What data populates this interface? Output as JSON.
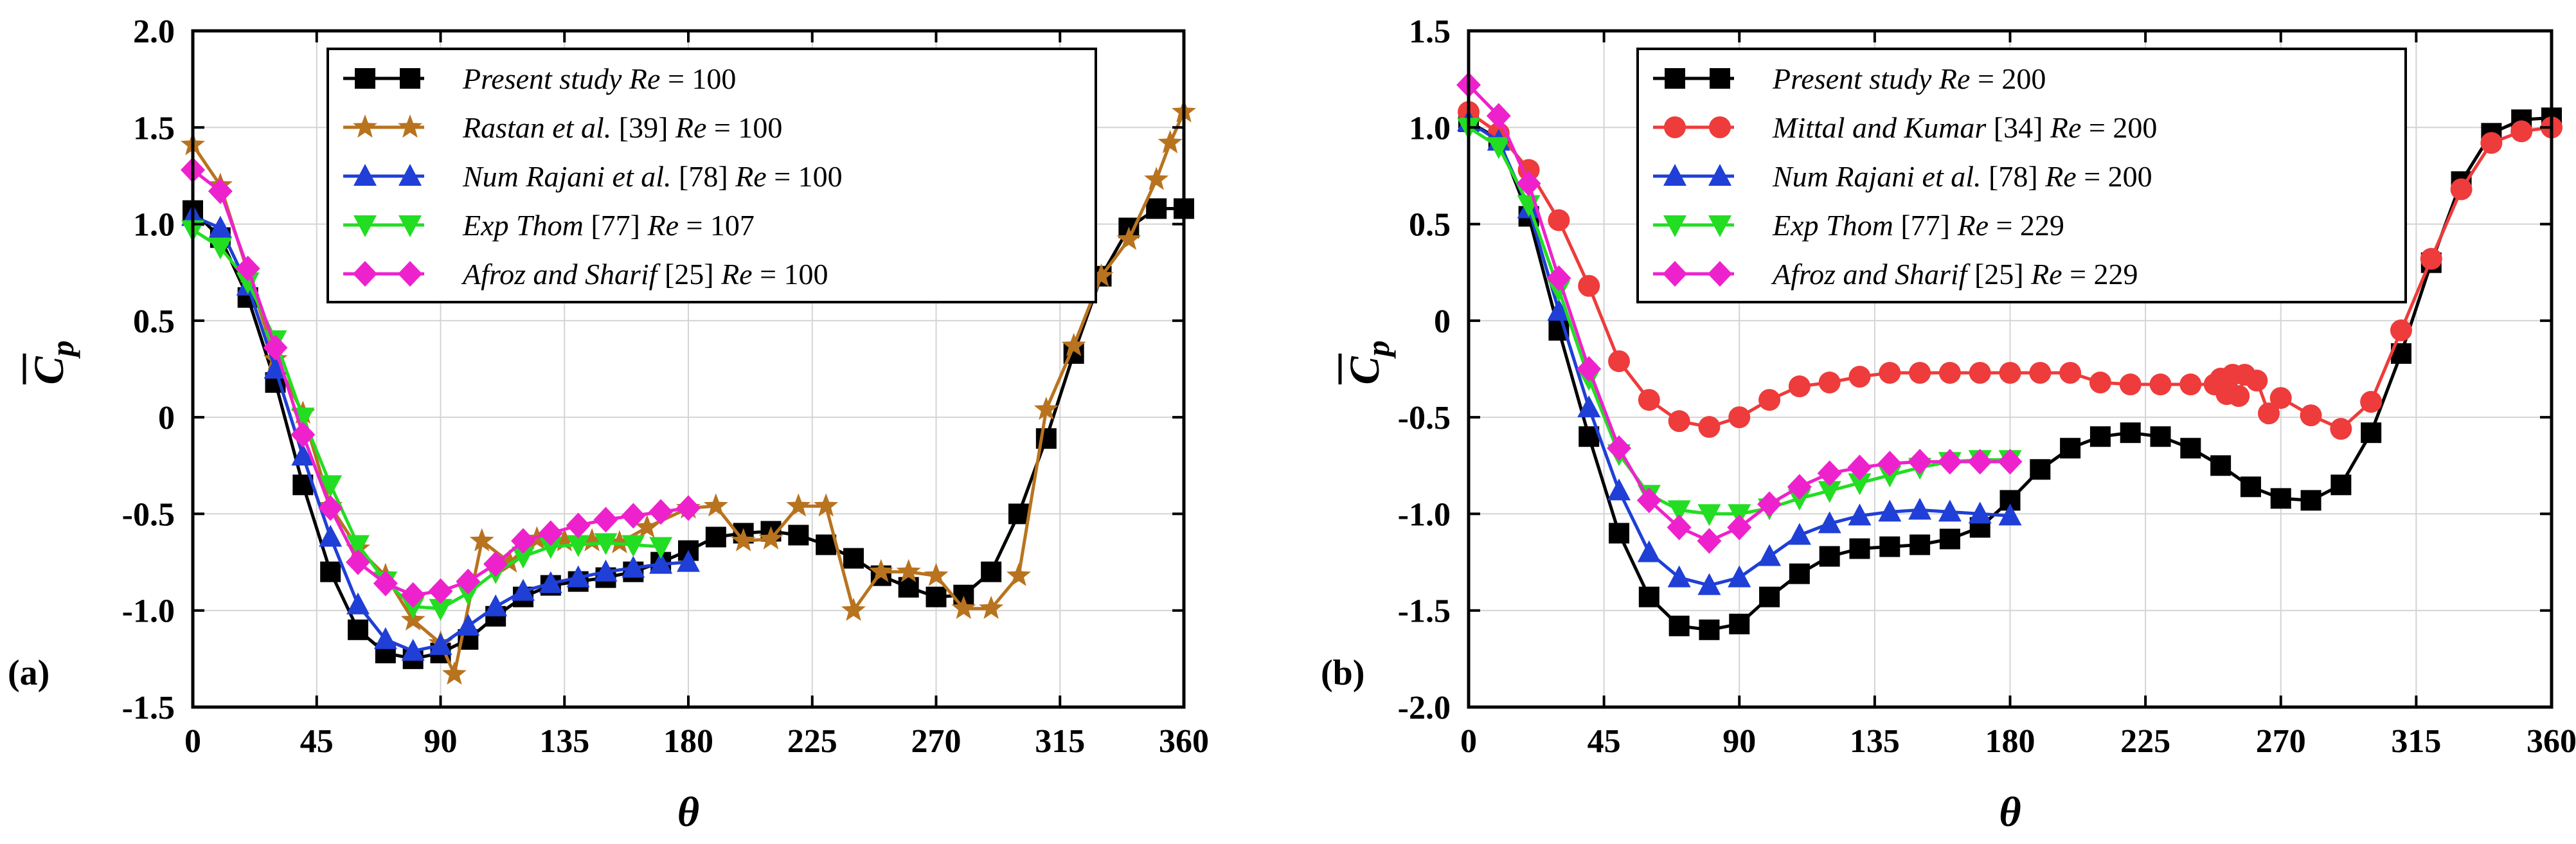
{
  "colors": {
    "black": "#000000",
    "brown": "#b8731f",
    "blue": "#1f3fd6",
    "green": "#22dd22",
    "magenta": "#ee22cc",
    "red": "#ee3b3b"
  },
  "chart_data": [
    {
      "type": "line",
      "panel_label": "(a)",
      "xlabel": "θ",
      "ylabel": "C p",
      "xlim": [
        0,
        360
      ],
      "ylim": [
        -1.5,
        2.0
      ],
      "xticks": [
        0,
        45,
        90,
        135,
        180,
        225,
        270,
        315,
        360
      ],
      "xtick_labels": [
        "0",
        "45",
        "90",
        "135",
        "180",
        "225",
        "270",
        "315",
        "360"
      ],
      "yticks": [
        -1.5,
        -1.0,
        -0.5,
        0,
        0.5,
        1.0,
        1.5,
        2.0
      ],
      "ytick_labels": [
        "-1.5",
        "-1.0",
        "-0.5",
        "0",
        "0.5",
        "1.0",
        "1.5",
        "2.0"
      ],
      "series": [
        {
          "name": "Present study",
          "re_label": "Re",
          "re_value": "= 100",
          "ref": "",
          "color": "#000000",
          "marker": "square",
          "x": [
            0,
            10,
            20,
            30,
            40,
            50,
            60,
            70,
            80,
            90,
            100,
            110,
            120,
            130,
            140,
            150,
            160,
            170,
            180,
            190,
            200,
            210,
            220,
            230,
            240,
            250,
            260,
            270,
            280,
            290,
            300,
            310,
            320,
            330,
            340,
            350,
            360
          ],
          "y": [
            1.07,
            0.93,
            0.62,
            0.18,
            -0.35,
            -0.8,
            -1.1,
            -1.22,
            -1.25,
            -1.22,
            -1.15,
            -1.03,
            -0.93,
            -0.87,
            -0.85,
            -0.83,
            -0.8,
            -0.75,
            -0.69,
            -0.62,
            -0.6,
            -0.59,
            -0.61,
            -0.66,
            -0.73,
            -0.82,
            -0.88,
            -0.93,
            -0.92,
            -0.8,
            -0.5,
            -0.11,
            0.33,
            0.73,
            0.98,
            1.08,
            1.08
          ]
        },
        {
          "name": "Rastan et al.",
          "re_label": "Re",
          "re_value": "= 100",
          "ref": "[39]",
          "color": "#b8731f",
          "marker": "star",
          "x": [
            0,
            10,
            20,
            30,
            40,
            50,
            60,
            70,
            80,
            90,
            95,
            105,
            115,
            125,
            135,
            145,
            155,
            165,
            180,
            190,
            200,
            210,
            220,
            230,
            240,
            250,
            260,
            270,
            280,
            290,
            300,
            310,
            320,
            330,
            340,
            350,
            355,
            360
          ],
          "y": [
            1.41,
            1.2,
            0.75,
            0.3,
            0.02,
            -0.46,
            -0.68,
            -0.82,
            -1.05,
            -1.17,
            -1.33,
            -0.64,
            -0.75,
            -0.63,
            -0.64,
            -0.64,
            -0.65,
            -0.57,
            -0.47,
            -0.46,
            -0.64,
            -0.63,
            -0.46,
            -0.46,
            -1.0,
            -0.8,
            -0.8,
            -0.82,
            -0.99,
            -0.99,
            -0.82,
            0.04,
            0.37,
            0.73,
            0.92,
            1.23,
            1.42,
            1.58
          ]
        },
        {
          "name": "Num Rajani et al.",
          "re_label": "Re",
          "re_value": "= 100",
          "ref": "[78]",
          "color": "#1f3fd6",
          "marker": "triangle-up",
          "x": [
            0,
            10,
            20,
            30,
            40,
            50,
            60,
            70,
            80,
            90,
            100,
            110,
            120,
            130,
            140,
            150,
            160,
            170,
            180
          ],
          "y": [
            1.04,
            0.98,
            0.68,
            0.25,
            -0.2,
            -0.62,
            -0.97,
            -1.15,
            -1.21,
            -1.18,
            -1.08,
            -0.98,
            -0.9,
            -0.86,
            -0.83,
            -0.8,
            -0.78,
            -0.76,
            -0.75
          ]
        },
        {
          "name": "Exp Thom",
          "re_label": "Re",
          "re_value": "= 107",
          "ref": "[77]",
          "color": "#22dd22",
          "marker": "triangle-down",
          "x": [
            0,
            10,
            20,
            30,
            40,
            50,
            60,
            70,
            80,
            90,
            100,
            110,
            120,
            130,
            140,
            150,
            160,
            170
          ],
          "y": [
            0.97,
            0.88,
            0.7,
            0.4,
            0.0,
            -0.35,
            -0.66,
            -0.85,
            -0.98,
            -0.99,
            -0.91,
            -0.8,
            -0.72,
            -0.67,
            -0.66,
            -0.65,
            -0.66,
            -0.67
          ]
        },
        {
          "name": "Afroz and Sharif",
          "re_label": "Re",
          "re_value": "= 100",
          "ref": "[25]",
          "color": "#ee22cc",
          "marker": "diamond",
          "x": [
            0,
            10,
            20,
            30,
            40,
            50,
            60,
            70,
            80,
            90,
            100,
            110,
            120,
            130,
            140,
            150,
            160,
            170,
            180
          ],
          "y": [
            1.28,
            1.17,
            0.77,
            0.36,
            -0.09,
            -0.47,
            -0.75,
            -0.86,
            -0.92,
            -0.9,
            -0.85,
            -0.76,
            -0.64,
            -0.6,
            -0.56,
            -0.53,
            -0.51,
            -0.49,
            -0.47
          ]
        }
      ]
    },
    {
      "type": "line",
      "panel_label": "(b)",
      "xlabel": "θ",
      "ylabel": "C p",
      "xlim": [
        0,
        360
      ],
      "ylim": [
        -2.0,
        1.5
      ],
      "xticks": [
        0,
        45,
        90,
        135,
        180,
        225,
        270,
        315,
        360
      ],
      "xtick_labels": [
        "0",
        "45",
        "90",
        "135",
        "180",
        "225",
        "270",
        "315",
        "360"
      ],
      "yticks": [
        -2.0,
        -1.5,
        -1.0,
        -0.5,
        0,
        0.5,
        1.0,
        1.5
      ],
      "ytick_labels": [
        "-2.0",
        "-1.5",
        "-1.0",
        "-0.5",
        "0",
        "0.5",
        "1.0",
        "1.5"
      ],
      "series": [
        {
          "name": "Present study",
          "re_label": "Re",
          "re_value": "= 200",
          "ref": "",
          "color": "#000000",
          "marker": "square",
          "x": [
            0,
            10,
            20,
            30,
            40,
            50,
            60,
            70,
            80,
            90,
            100,
            110,
            120,
            130,
            140,
            150,
            160,
            170,
            180,
            190,
            200,
            210,
            220,
            230,
            240,
            250,
            260,
            270,
            280,
            290,
            300,
            310,
            320,
            330,
            340,
            350,
            360
          ],
          "y": [
            1.03,
            0.94,
            0.54,
            -0.05,
            -0.6,
            -1.1,
            -1.43,
            -1.58,
            -1.6,
            -1.57,
            -1.43,
            -1.31,
            -1.22,
            -1.18,
            -1.17,
            -1.16,
            -1.13,
            -1.07,
            -0.93,
            -0.77,
            -0.66,
            -0.6,
            -0.58,
            -0.6,
            -0.66,
            -0.75,
            -0.86,
            -0.92,
            -0.93,
            -0.85,
            -0.58,
            -0.17,
            0.3,
            0.72,
            0.97,
            1.04,
            1.05
          ]
        },
        {
          "name": "Mittal and Kumar",
          "re_label": "Re",
          "re_value": "= 200",
          "ref": "[34]",
          "color": "#ee3b3b",
          "marker": "circle",
          "x": [
            0,
            10,
            20,
            30,
            40,
            50,
            60,
            70,
            80,
            90,
            100,
            110,
            120,
            130,
            140,
            150,
            160,
            170,
            180,
            190,
            200,
            210,
            220,
            230,
            240,
            248,
            250,
            252,
            254,
            256,
            258,
            262,
            266,
            270,
            280,
            290,
            300,
            310,
            320,
            330,
            340,
            350,
            360
          ],
          "y": [
            1.08,
            0.97,
            0.78,
            0.52,
            0.18,
            -0.21,
            -0.41,
            -0.52,
            -0.55,
            -0.5,
            -0.41,
            -0.34,
            -0.32,
            -0.29,
            -0.27,
            -0.27,
            -0.27,
            -0.27,
            -0.27,
            -0.27,
            -0.27,
            -0.32,
            -0.33,
            -0.33,
            -0.33,
            -0.33,
            -0.3,
            -0.38,
            -0.28,
            -0.39,
            -0.28,
            -0.31,
            -0.48,
            -0.4,
            -0.49,
            -0.56,
            -0.42,
            -0.05,
            0.32,
            0.68,
            0.92,
            0.98,
            1.0
          ]
        },
        {
          "name": "Num Rajani et al.",
          "re_label": "Re",
          "re_value": "= 200",
          "ref": "[78]",
          "color": "#1f3fd6",
          "marker": "triangle-up",
          "x": [
            0,
            10,
            20,
            30,
            40,
            50,
            60,
            70,
            80,
            90,
            100,
            110,
            120,
            130,
            140,
            150,
            160,
            170,
            180
          ],
          "y": [
            1.03,
            0.93,
            0.58,
            0.05,
            -0.45,
            -0.88,
            -1.2,
            -1.33,
            -1.37,
            -1.33,
            -1.22,
            -1.11,
            -1.05,
            -1.01,
            -0.99,
            -0.98,
            -0.99,
            -1.0,
            -1.01
          ]
        },
        {
          "name": "Exp Thom",
          "re_label": "Re",
          "re_value": "= 229",
          "ref": "[77]",
          "color": "#22dd22",
          "marker": "triangle-down",
          "x": [
            0,
            10,
            20,
            30,
            40,
            50,
            60,
            70,
            80,
            90,
            100,
            110,
            120,
            130,
            140,
            150,
            160,
            170,
            180
          ],
          "y": [
            1.0,
            0.9,
            0.6,
            0.16,
            -0.3,
            -0.69,
            -0.9,
            -0.98,
            -1.0,
            -1.0,
            -0.97,
            -0.92,
            -0.88,
            -0.84,
            -0.8,
            -0.76,
            -0.73,
            -0.72,
            -0.72
          ]
        },
        {
          "name": "Afroz and Sharif",
          "re_label": "Re",
          "re_value": "= 229",
          "ref": "[25]",
          "color": "#ee22cc",
          "marker": "diamond",
          "x": [
            0,
            10,
            20,
            30,
            40,
            50,
            60,
            70,
            80,
            90,
            100,
            110,
            120,
            130,
            140,
            150,
            160,
            170,
            180
          ],
          "y": [
            1.22,
            1.06,
            0.71,
            0.22,
            -0.25,
            -0.66,
            -0.93,
            -1.07,
            -1.14,
            -1.07,
            -0.95,
            -0.86,
            -0.79,
            -0.76,
            -0.74,
            -0.73,
            -0.73,
            -0.73,
            -0.73
          ]
        }
      ]
    }
  ]
}
